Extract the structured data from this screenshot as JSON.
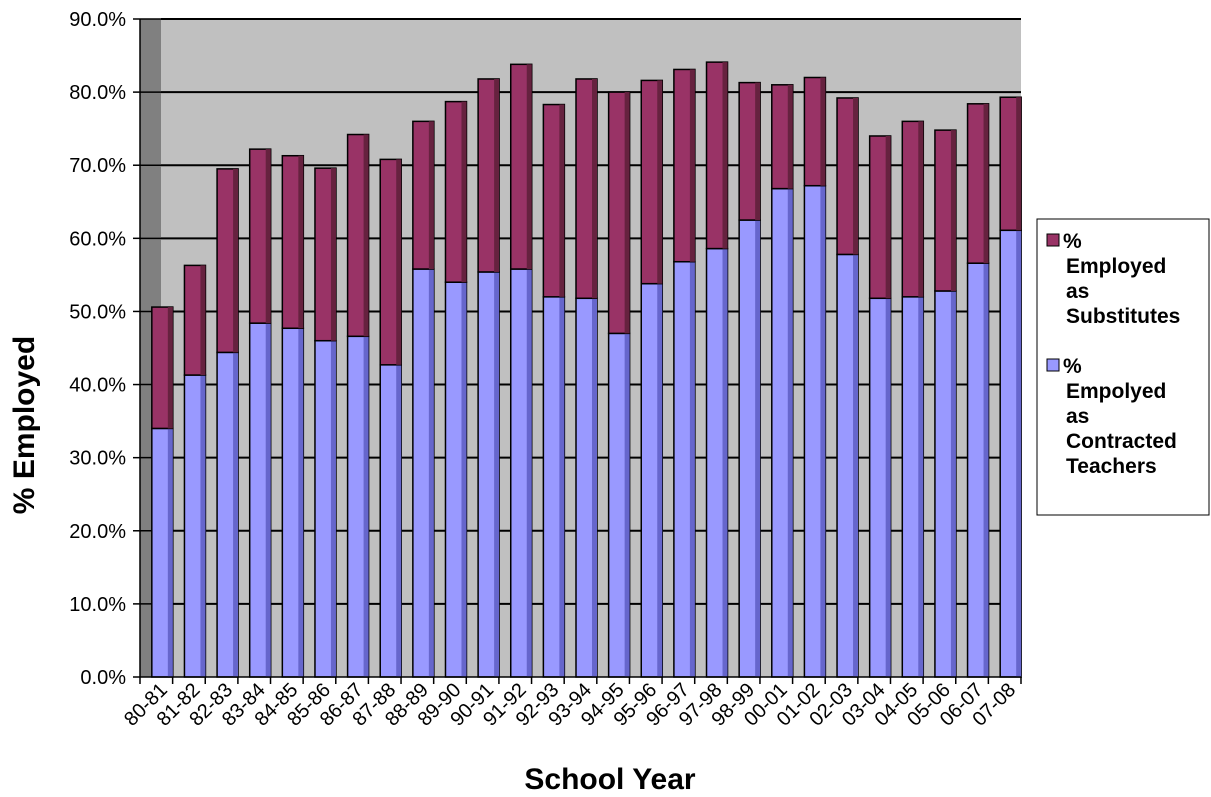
{
  "chart_data": {
    "type": "bar",
    "stacked": true,
    "xlabel": "School Year",
    "ylabel": "% Employed",
    "ylim": [
      0,
      90
    ],
    "yticks": [
      "0.0%",
      "10.0%",
      "20.0%",
      "30.0%",
      "40.0%",
      "50.0%",
      "60.0%",
      "70.0%",
      "80.0%",
      "90.0%"
    ],
    "grid": true,
    "legend_position": "right",
    "categories": [
      "80-81",
      "81-82",
      "82-83",
      "83-84",
      "84-85",
      "85-86",
      "86-87",
      "87-88",
      "88-89",
      "89-90",
      "90-91",
      "91-92",
      "92-93",
      "93-94",
      "94-95",
      "95-96",
      "96-97",
      "97-98",
      "98-99",
      "00-01",
      "01-02",
      "02-03",
      "03-04",
      "04-05",
      "05-06",
      "06-07",
      "07-08"
    ],
    "series": [
      {
        "name": "% Empolyed as Contracted Teachers",
        "color": "#9999ff",
        "values": [
          34.0,
          41.3,
          44.4,
          48.4,
          47.7,
          46.0,
          46.6,
          42.7,
          55.8,
          54.0,
          55.4,
          55.8,
          52.0,
          51.8,
          47.0,
          53.8,
          56.8,
          58.6,
          62.5,
          66.8,
          67.2,
          57.8,
          51.8,
          52.0,
          52.8,
          56.6,
          61.1
        ]
      },
      {
        "name": "% Employed as Substitutes",
        "color": "#993366",
        "values": [
          16.6,
          15.0,
          25.1,
          23.8,
          23.6,
          23.6,
          27.6,
          28.1,
          20.2,
          24.7,
          26.4,
          28.0,
          26.3,
          30.0,
          33.0,
          27.8,
          26.3,
          25.5,
          18.8,
          14.2,
          14.8,
          21.4,
          22.2,
          24.0,
          22.0,
          21.8,
          18.2
        ]
      }
    ],
    "legend": [
      {
        "lines": [
          "%",
          "Employed",
          "as",
          "Substitutes"
        ],
        "color": "#993366"
      },
      {
        "lines": [
          "%",
          "Empolyed",
          "as",
          "Contracted",
          "Teachers"
        ],
        "color": "#9999ff"
      }
    ]
  }
}
